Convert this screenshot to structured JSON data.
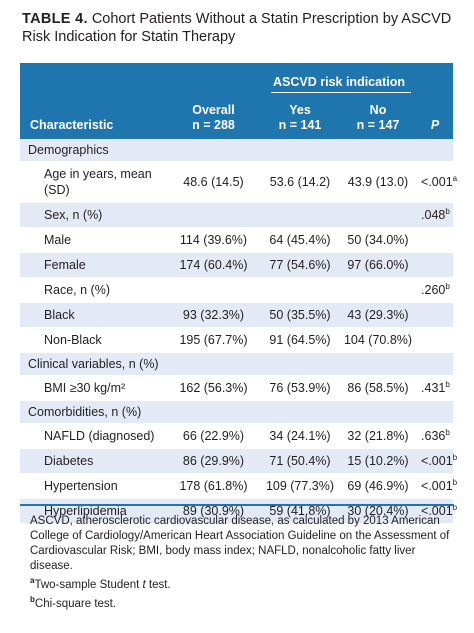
{
  "title": {
    "label": "TABLE 4.",
    "text": "Cohort Patients Without a Statin Prescription by ASCVD Risk Indication for Statin Therapy"
  },
  "header": {
    "group": "ASCVD risk indication",
    "characteristic": "Characteristic",
    "overall": "Overall",
    "overall_n": "n = 288",
    "yes": "Yes",
    "yes_n": "n = 141",
    "no": "No",
    "no_n": "n = 147",
    "p": "P"
  },
  "rows": [
    {
      "label": "Demographics",
      "section": true
    },
    {
      "label": "Age in years, mean (SD)",
      "overall": "48.6 (14.5)",
      "yes": "53.6 (14.2)",
      "no": "43.9 (13.0)",
      "p": "<.001",
      "p_sup": "a"
    },
    {
      "label": "Sex, n (%)",
      "sub": true,
      "p": ".048",
      "p_sup": "b"
    },
    {
      "label": "Male",
      "overall": "114 (39.6%)",
      "yes": "64 (45.4%)",
      "no": "50 (34.0%)"
    },
    {
      "label": "Female",
      "overall": "174 (60.4%)",
      "yes": "77 (54.6%)",
      "no": "97 (66.0%)"
    },
    {
      "label": "Race, n (%)",
      "sub": true,
      "p": ".260",
      "p_sup": "b"
    },
    {
      "label": "Black",
      "overall": "93 (32.3%)",
      "yes": "50 (35.5%)",
      "no": "43 (29.3%)"
    },
    {
      "label": "Non-Black",
      "overall": "195 (67.7%)",
      "yes": "91 (64.5%)",
      "no": "104 (70.8%)"
    },
    {
      "label": "Clinical variables, n (%)",
      "section": true
    },
    {
      "label": "BMI ≥30 kg/m²",
      "overall": "162 (56.3%)",
      "yes": "76 (53.9%)",
      "no": "86 (58.5%)",
      "p": ".431",
      "p_sup": "b"
    },
    {
      "label": "Comorbidities, n (%)",
      "section": true
    },
    {
      "label": "NAFLD (diagnosed)",
      "overall": "66 (22.9%)",
      "yes": "34 (24.1%)",
      "no": "32 (21.8%)",
      "p": ".636",
      "p_sup": "b"
    },
    {
      "label": "Diabetes",
      "overall": "86 (29.9%)",
      "yes": "71 (50.4%)",
      "no": "15 (10.2%)",
      "p": "<.001",
      "p_sup": "b"
    },
    {
      "label": "Hypertension",
      "overall": "178 (61.8%)",
      "yes": "109 (77.3%)",
      "no": "69 (46.9%)",
      "p": "<.001",
      "p_sup": "b"
    },
    {
      "label": "Hyperlipidemia",
      "overall": "89 (30.9%)",
      "yes": "59 (41.8%)",
      "no": "30 (20.4%)",
      "p": "<.001",
      "p_sup": "b"
    }
  ],
  "notes": {
    "abbrev": "ASCVD, atherosclerotic cardiovascular disease, as calculated by 2013 American College of Cardiology/American Heart Association Guideline on the Assessment of Cardiovascular Risk; BMI, body mass index; NAFLD, nonalcoholic fatty liver disease.",
    "fn_a_mark": "a",
    "fn_a_pre": "Two-sample Student ",
    "fn_a_italic": "t",
    "fn_a_post": " test.",
    "fn_b_mark": "b",
    "fn_b": "Chi-square test."
  },
  "colors": {
    "header_bg": "#1f76ae",
    "shade_bg": "#e3eaf5",
    "text": "#231f20"
  }
}
